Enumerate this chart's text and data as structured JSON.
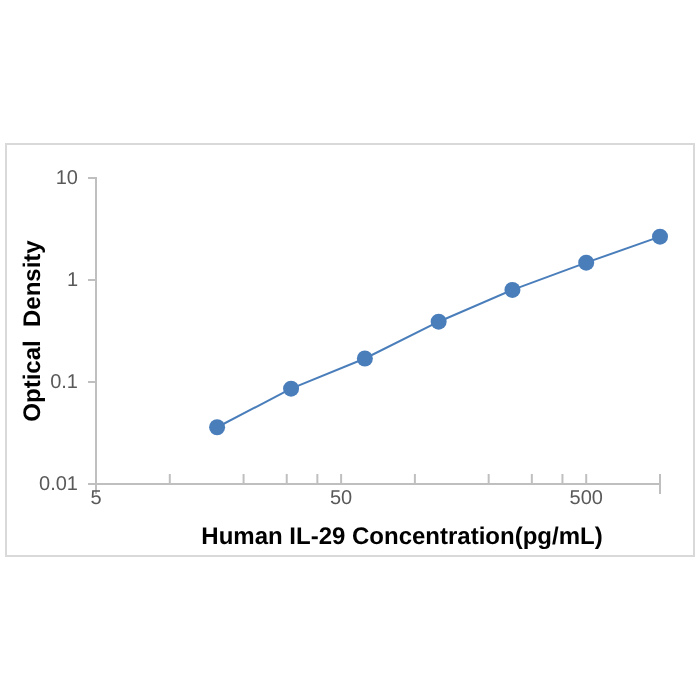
{
  "chart_data": {
    "type": "line",
    "xlabel": "Human IL-29 Concentration(pg/mL)",
    "ylabel": "Optical  Density",
    "log": "xy",
    "grid": false,
    "marker": "circle",
    "line_style": "solid",
    "x": [
      15.6,
      31.25,
      62.5,
      125,
      250,
      500,
      1000
    ],
    "series": [
      {
        "color": "#4a7ebb",
        "values": [
          0.036,
          0.086,
          0.17,
          0.39,
          0.8,
          1.48,
          2.66
        ]
      }
    ],
    "xlim": [
      5,
      1000
    ],
    "ylim": [
      0.01,
      10
    ],
    "xticks": [
      5,
      {
        "value": 10,
        "label": null
      },
      {
        "value": 20,
        "label": null
      },
      {
        "value": 30,
        "label": null
      },
      {
        "value": 40,
        "label": null
      },
      50,
      {
        "value": 100,
        "label": null
      },
      {
        "value": 200,
        "label": null
      },
      {
        "value": 300,
        "label": null
      },
      {
        "value": 400,
        "label": null
      },
      500,
      {
        "value": 1000,
        "label": null
      }
    ],
    "yticks": [
      0.01,
      0.1,
      1,
      10
    ]
  }
}
